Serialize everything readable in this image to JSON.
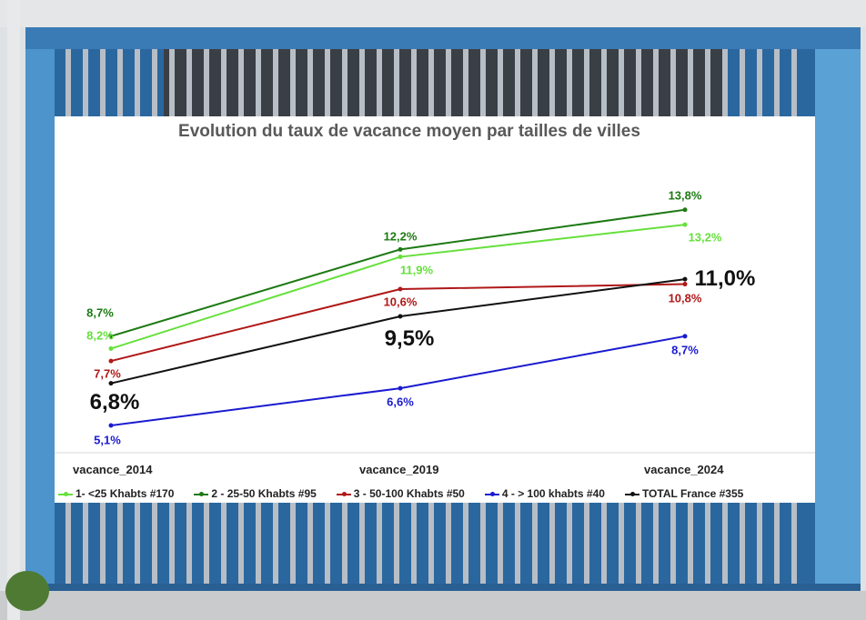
{
  "background": {
    "scene": "blue metal shop shutter with folding security gate",
    "colors": {
      "shutter_blue": "#2e6da8",
      "light_blue": "#4a90c8",
      "gate_grey": "#b8bcc2",
      "wall": "#dde1e4"
    }
  },
  "chart_data": {
    "type": "line",
    "title": "Evolution du taux de vacance moyen par tailles de villes",
    "categories": [
      "vacance_2014",
      "vacance_2019",
      "vacance_2024"
    ],
    "xlabel": "",
    "ylabel": "",
    "ylim": [
      4,
      15
    ],
    "grid": false,
    "legend_position": "bottom",
    "series": [
      {
        "name": "1- <25 Khabts #170",
        "color": "#66e03c",
        "values": [
          8.2,
          11.9,
          13.2
        ],
        "labels": [
          "8,2%",
          "11,9%",
          "13,2%"
        ],
        "label_size": "small"
      },
      {
        "name": "2 - 25-50 Khabts #95",
        "color": "#1e7a14",
        "values": [
          8.7,
          12.2,
          13.8
        ],
        "labels": [
          "8,7%",
          "12,2%",
          "13,8%"
        ],
        "label_size": "small"
      },
      {
        "name": "3 - 50-100 Khabts #50",
        "color": "#b01818",
        "values": [
          7.7,
          10.6,
          10.8
        ],
        "labels": [
          "7,7%",
          "10,6%",
          "10,8%"
        ],
        "label_size": "small"
      },
      {
        "name": "4 - > 100 khabts #40",
        "color": "#1a1ad0",
        "values": [
          5.1,
          6.6,
          8.7
        ],
        "labels": [
          "5,1%",
          "6,6%",
          "8,7%"
        ],
        "label_size": "small"
      },
      {
        "name": "TOTAL France #355",
        "color": "#111111",
        "values": [
          6.8,
          9.5,
          11.0
        ],
        "labels": [
          "6,8%",
          "9,5%",
          "11,0%"
        ],
        "label_size": "large"
      }
    ]
  }
}
